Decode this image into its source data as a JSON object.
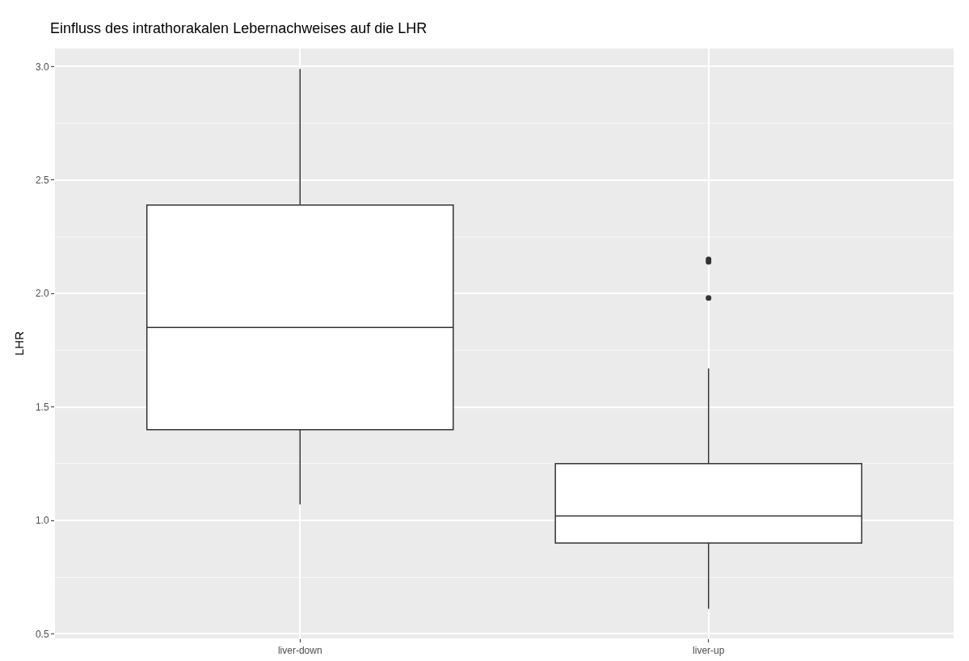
{
  "chart_data": {
    "type": "box",
    "title": "Einfluss des intrathorakalen Lebernachweises auf die LHR",
    "ylabel": "LHR",
    "categories": [
      "liver-down",
      "liver-up"
    ],
    "boxes": [
      {
        "low": 1.07,
        "q1": 1.4,
        "median": 1.85,
        "q3": 2.39,
        "high": 2.99
      },
      {
        "low": 0.61,
        "q1": 0.9,
        "median": 1.02,
        "q3": 1.25,
        "high": 1.67,
        "outliers": [
          2.15,
          2.14,
          1.98
        ]
      }
    ],
    "ylim": [
      0.48,
      3.08
    ],
    "yticks": [
      {
        "value": 0.5,
        "label": "0.5"
      },
      {
        "value": 1,
        "label": "1.0"
      },
      {
        "value": 1.5,
        "label": "1.5"
      },
      {
        "value": 2,
        "label": "2.0"
      },
      {
        "value": 2.5,
        "label": "2.5"
      },
      {
        "value": 3,
        "label": "3.0"
      }
    ],
    "grid": true
  }
}
